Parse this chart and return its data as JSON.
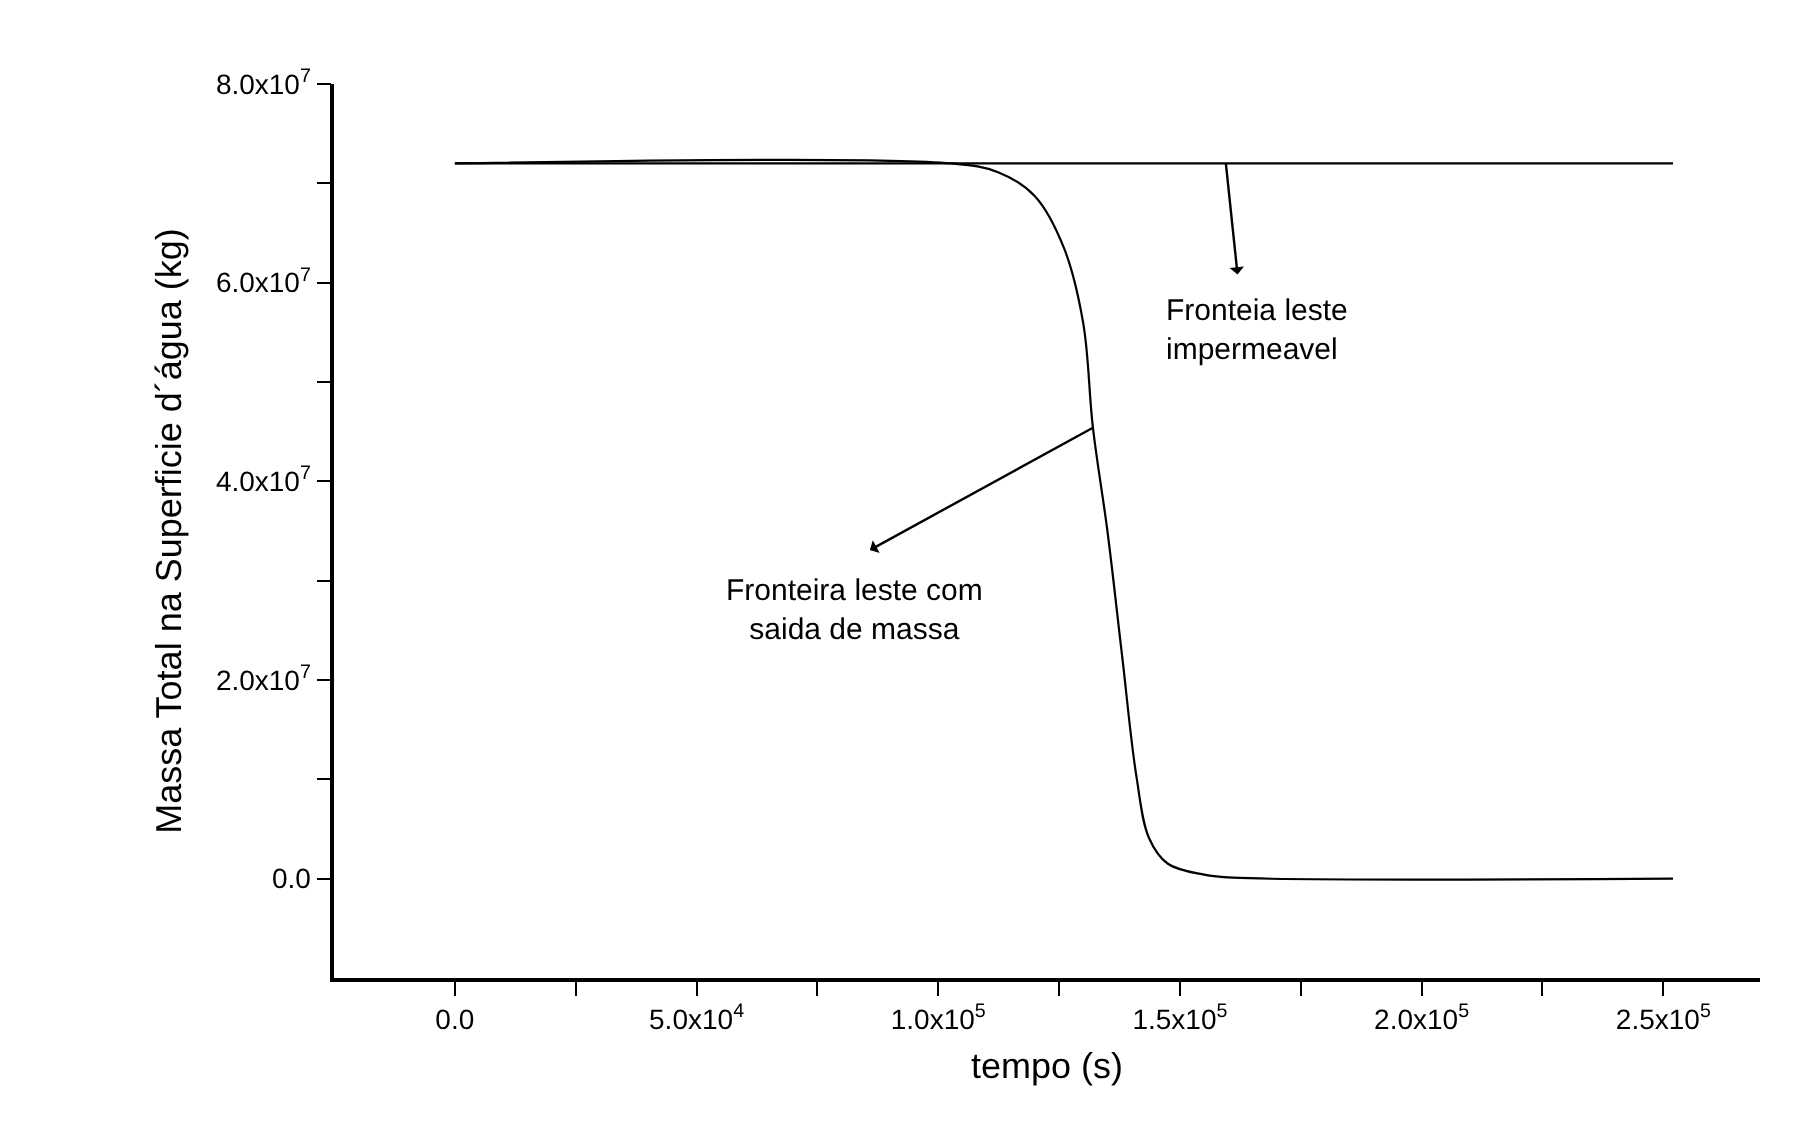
{
  "chart_data": {
    "type": "line",
    "xlabel": "tempo (s)",
    "ylabel": "Massa Total na Superficie d´água (kg)",
    "xlim": [
      -25000,
      270000
    ],
    "ylim": [
      -10000000,
      80000000
    ],
    "xticks": [
      {
        "value": 0,
        "label": "0.0"
      },
      {
        "value": 25000,
        "label": null
      },
      {
        "value": 50000,
        "label": "5.0x10$^{4}$"
      },
      {
        "value": 75000,
        "label": null
      },
      {
        "value": 100000,
        "label": "1.0x10$^{5}$"
      },
      {
        "value": 125000,
        "label": null
      },
      {
        "value": 150000,
        "label": "1.5x10$^{5}$"
      },
      {
        "value": 175000,
        "label": null
      },
      {
        "value": 200000,
        "label": "2.0x10$^{5}$"
      },
      {
        "value": 225000,
        "label": null
      },
      {
        "value": 250000,
        "label": "2.5x10$^{5}$"
      }
    ],
    "yticks": [
      {
        "value": 0,
        "label": "0.0"
      },
      {
        "value": 10000000,
        "label": null
      },
      {
        "value": 20000000,
        "label": "2.0x10$^{7}$"
      },
      {
        "value": 30000000,
        "label": null
      },
      {
        "value": 40000000,
        "label": "4.0x10$^{7}$"
      },
      {
        "value": 50000000,
        "label": null
      },
      {
        "value": 60000000,
        "label": "6.0x10$^{7}$"
      },
      {
        "value": 70000000,
        "label": null
      },
      {
        "value": 80000000,
        "label": "8.0x10$^{7}$"
      }
    ],
    "marker": "none",
    "line_style": "solid",
    "series": [
      {
        "color": "#000000",
        "x": [
          0,
          252000
        ],
        "values": [
          72000000,
          72000000
        ]
      },
      {
        "color": "#000000",
        "x": [
          0,
          102700,
          112500,
          120000,
          126000,
          130000,
          132000,
          135000,
          138000,
          141000,
          143600,
          147500,
          155000,
          161000,
          252000
        ],
        "values": [
          72000000,
          72000000,
          71100000,
          68700000,
          63500000,
          55900000,
          45400000,
          35000000,
          22600000,
          10300000,
          4100000,
          1500000,
          400000,
          100000,
          0
        ]
      }
    ],
    "annotations": [
      {
        "text": "Fronteia leste\nimpermeavel",
        "x": 159500,
        "y": 72000000
      },
      {
        "text": "Fronteira leste com\nsaida de massa",
        "x": 132000,
        "y": 45400000
      }
    ]
  }
}
